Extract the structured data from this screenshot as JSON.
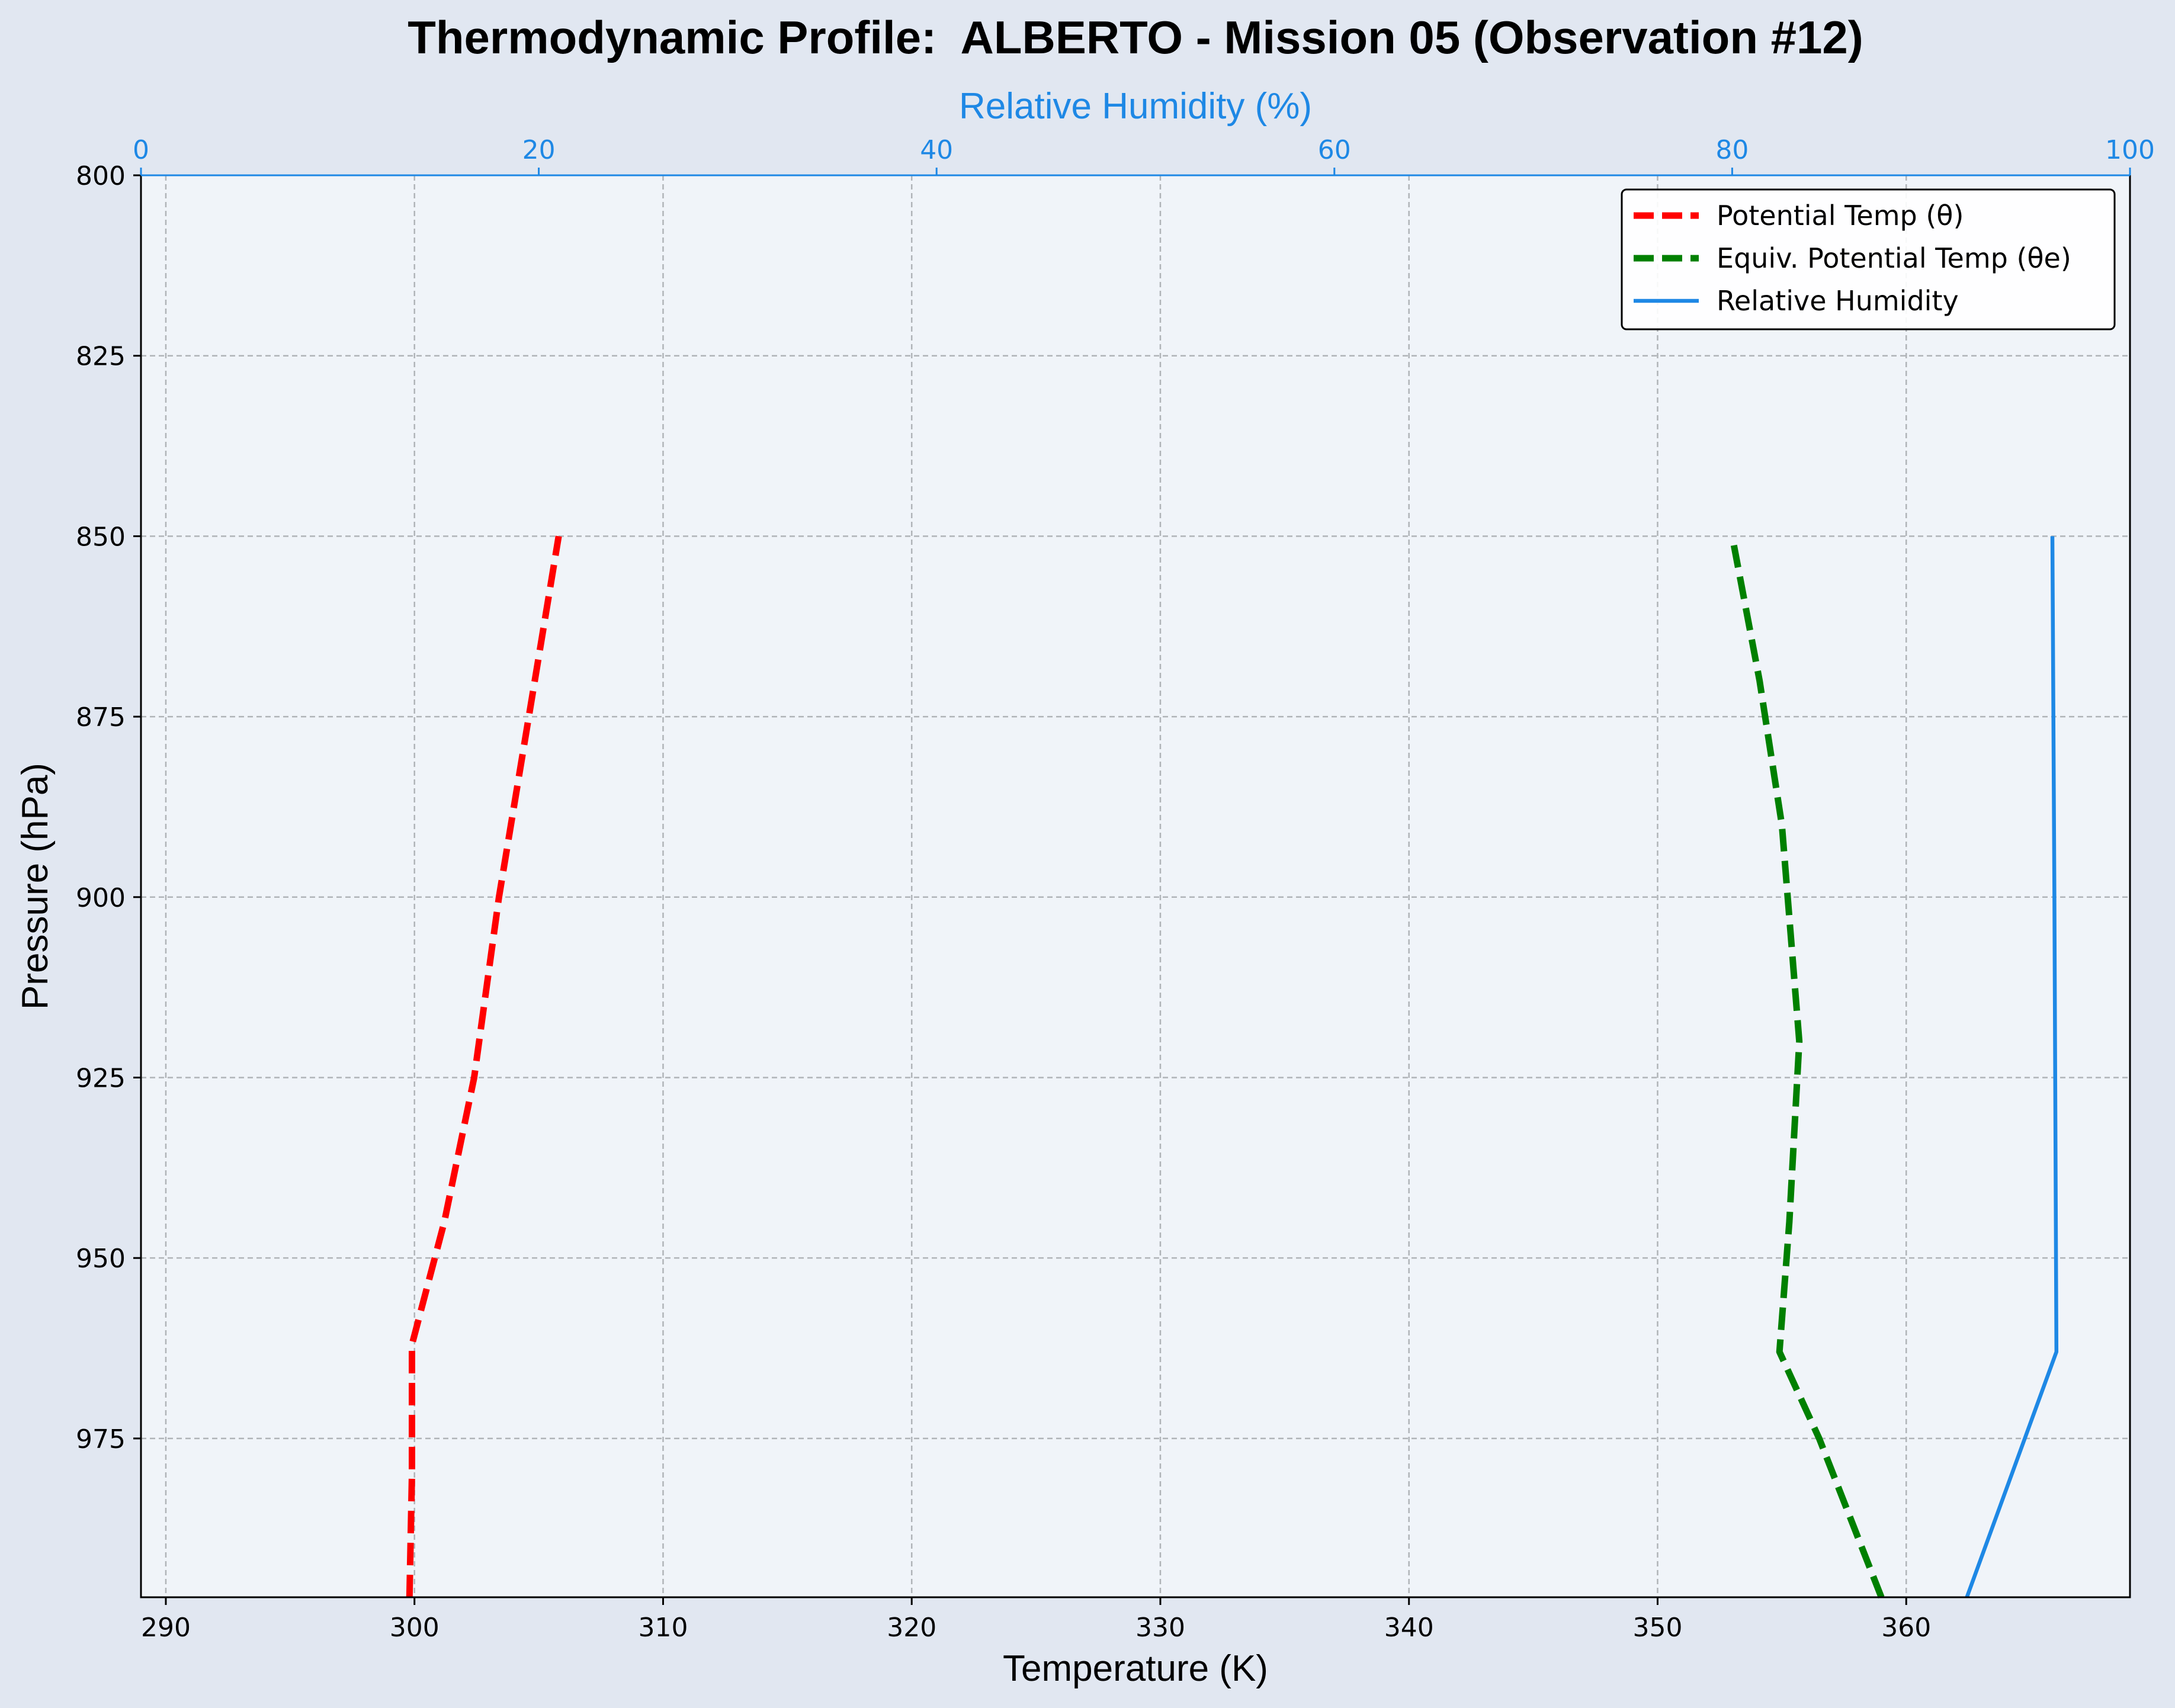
{
  "chart_data": {
    "type": "line",
    "title": "Thermodynamic Profile:  ALBERTO - Mission 05 (Observation #12)",
    "xlabel": "Temperature (K)",
    "ylabel": "Pressure (hPa)",
    "x2label": "Relative Humidity (%)",
    "xlim": [
      289,
      369
    ],
    "ylim": [
      997,
      800
    ],
    "y_inverted": true,
    "x2lim": [
      0,
      100
    ],
    "xticks": [
      290,
      300,
      310,
      320,
      330,
      340,
      350,
      360
    ],
    "yticks": [
      800,
      825,
      850,
      875,
      900,
      925,
      950,
      975
    ],
    "x2ticks": [
      0,
      20,
      40,
      60,
      80,
      100
    ],
    "grid": true,
    "legend_position": "top-right",
    "colors": {
      "theta": "#ff0000",
      "theta_e": "#008000",
      "rh": "#1e88e5",
      "axis_rh": "#1e88e5",
      "plot_bg": "#f0f4f9",
      "fig_bg": "#e1e7f1"
    },
    "series": [
      {
        "name": "Potential Temp (θ)",
        "axis": "temperature",
        "style": "dashed",
        "points": [
          [
            299.8,
            997
          ],
          [
            299.9,
            980
          ],
          [
            299.9,
            962
          ],
          [
            301.2,
            945
          ],
          [
            302.4,
            925
          ],
          [
            303.4,
            900
          ],
          [
            304.6,
            875
          ],
          [
            305.8,
            850
          ]
        ]
      },
      {
        "name": "Equiv. Potential Temp (θe)",
        "axis": "temperature",
        "style": "dashed",
        "points": [
          [
            359.0,
            997
          ],
          [
            356.5,
            975
          ],
          [
            354.9,
            963
          ],
          [
            355.3,
            945
          ],
          [
            355.7,
            920
          ],
          [
            355.0,
            890
          ],
          [
            354.1,
            870
          ],
          [
            353.0,
            850
          ]
        ]
      },
      {
        "name": "Relative Humidity",
        "axis": "humidity",
        "style": "solid",
        "points": [
          [
            91.8,
            997
          ],
          [
            96.3,
            963
          ],
          [
            96.2,
            900
          ],
          [
            96.1,
            850
          ]
        ]
      }
    ]
  }
}
